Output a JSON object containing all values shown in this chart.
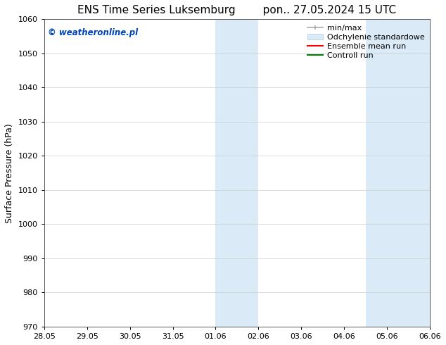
{
  "title_left": "ENS Time Series Luksemburg",
  "title_right": "pon.. 27.05.2024 15 UTC",
  "ylabel": "Surface Pressure (hPa)",
  "ylim": [
    970,
    1060
  ],
  "yticks": [
    970,
    980,
    990,
    1000,
    1010,
    1020,
    1030,
    1040,
    1050,
    1060
  ],
  "xtick_labels": [
    "28.05",
    "29.05",
    "30.05",
    "31.05",
    "01.06",
    "02.06",
    "03.06",
    "04.06",
    "05.06",
    "06.06"
  ],
  "xtick_positions": [
    0,
    1,
    2,
    3,
    4,
    5,
    6,
    7,
    8,
    9
  ],
  "xlim": [
    0,
    9
  ],
  "shaded_regions": [
    {
      "xstart": 4.0,
      "xend": 5.0
    },
    {
      "xstart": 7.5,
      "xend": 9.0
    }
  ],
  "shaded_color": "#daeaf6",
  "watermark_text": "© weatheronline.pl",
  "watermark_color": "#0044bb",
  "bg_color": "#ffffff",
  "grid_color": "#cccccc",
  "title_fontsize": 11,
  "label_fontsize": 9,
  "tick_fontsize": 8,
  "legend_fontsize": 8,
  "minmax_color": "#aaaaaa",
  "std_color": "#daeaf6",
  "std_edge_color": "#aaccdd",
  "ens_color": "red",
  "ctrl_color": "green"
}
